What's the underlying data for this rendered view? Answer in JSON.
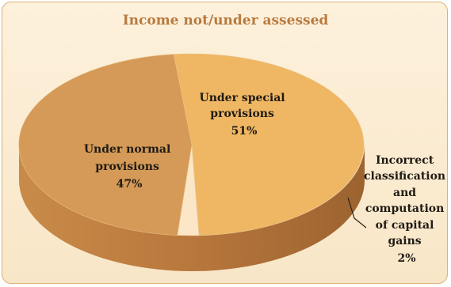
{
  "chart_data": {
    "type": "pie",
    "title": "Income not/under assessed",
    "slices": [
      {
        "label_lines": [
          "Under special",
          "provisions"
        ],
        "value": 51,
        "value_label": "51%"
      },
      {
        "label_lines": [
          "Incorrect",
          "classification",
          "and",
          "computation",
          "of capital",
          "gains"
        ],
        "value": 2,
        "value_label": "2%"
      },
      {
        "label_lines": [
          "Under normal",
          "provisions"
        ],
        "value": 47,
        "value_label": "47%"
      }
    ],
    "colors": {
      "special_top": "#efb763",
      "normal_top": "#d59a57",
      "small_top": "#fbe6c8",
      "side": "#b8773c",
      "title": "#b87a3e"
    }
  }
}
